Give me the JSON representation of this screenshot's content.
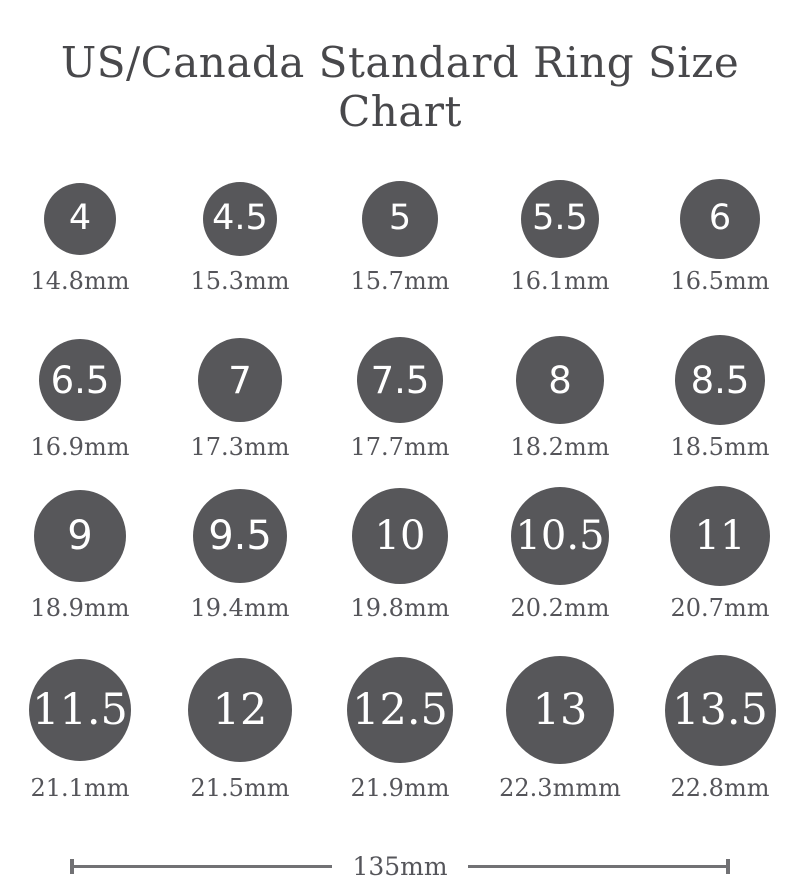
{
  "title": "US/Canada Standard Ring Size Chart",
  "colors": {
    "circle": "#57575a",
    "number": "#ffffff",
    "title": "#48484b",
    "label": "#55555a",
    "bar": "#717174"
  },
  "sizes": [
    {
      "size": "4",
      "diameter_mm": 14.8,
      "diameter_label": "14.8mm"
    },
    {
      "size": "4.5",
      "diameter_mm": 15.3,
      "diameter_label": "15.3mm"
    },
    {
      "size": "5",
      "diameter_mm": 15.7,
      "diameter_label": "15.7mm"
    },
    {
      "size": "5.5",
      "diameter_mm": 16.1,
      "diameter_label": "16.1mm"
    },
    {
      "size": "6",
      "diameter_mm": 16.5,
      "diameter_label": "16.5mm"
    },
    {
      "size": "6.5",
      "diameter_mm": 16.9,
      "diameter_label": "16.9mm"
    },
    {
      "size": "7",
      "diameter_mm": 17.3,
      "diameter_label": "17.3mm"
    },
    {
      "size": "7.5",
      "diameter_mm": 17.7,
      "diameter_label": "17.7mm"
    },
    {
      "size": "8",
      "diameter_mm": 18.2,
      "diameter_label": "18.2mm"
    },
    {
      "size": "8.5",
      "diameter_mm": 18.5,
      "diameter_label": "18.5mm"
    },
    {
      "size": "9",
      "diameter_mm": 18.9,
      "diameter_label": "18.9mm"
    },
    {
      "size": "9.5",
      "diameter_mm": 19.4,
      "diameter_label": "19.4mm"
    },
    {
      "size": "10",
      "diameter_mm": 19.8,
      "diameter_label": "19.8mm"
    },
    {
      "size": "10.5",
      "diameter_mm": 20.2,
      "diameter_label": "20.2mm"
    },
    {
      "size": "11",
      "diameter_mm": 20.7,
      "diameter_label": "20.7mm"
    },
    {
      "size": "11.5",
      "diameter_mm": 21.1,
      "diameter_label": "21.1mm"
    },
    {
      "size": "12",
      "diameter_mm": 21.5,
      "diameter_label": "21.5mm"
    },
    {
      "size": "12.5",
      "diameter_mm": 21.9,
      "diameter_label": "21.9mm"
    },
    {
      "size": "13",
      "diameter_mm": 22.3,
      "diameter_label": "22.3mmm"
    },
    {
      "size": "13.5",
      "diameter_mm": 22.8,
      "diameter_label": "22.8mm"
    }
  ],
  "scale_bar": {
    "label": "135mm"
  }
}
